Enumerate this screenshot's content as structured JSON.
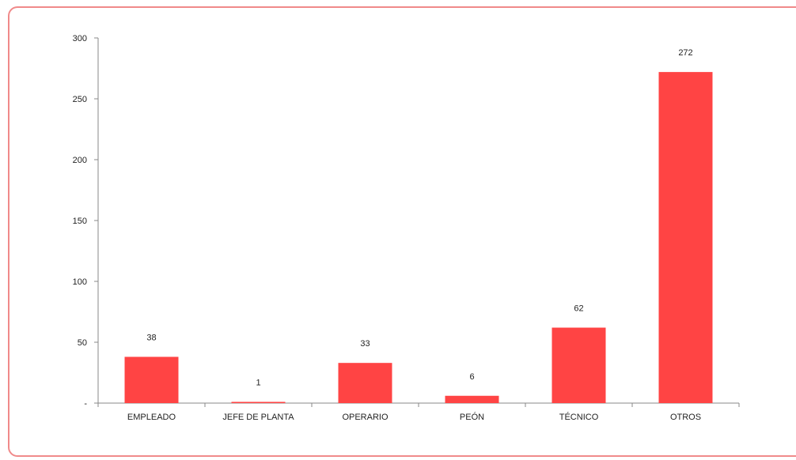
{
  "chart_data": {
    "type": "bar",
    "categories": [
      "EMPLEADO",
      "JEFE DE PLANTA",
      "OPERARIO",
      "PEÓN",
      "TÉCNICO",
      "OTROS"
    ],
    "values": [
      38,
      1,
      33,
      6,
      62,
      272
    ],
    "data_labels": [
      "38",
      "1",
      "33",
      "6",
      "62",
      "272"
    ],
    "ylim": [
      0,
      300
    ],
    "yticks": [
      0,
      50,
      100,
      150,
      200,
      250,
      300
    ],
    "ytick_labels": [
      "-",
      "50",
      "100",
      "150",
      "200",
      "250",
      "300"
    ],
    "title": "",
    "xlabel": "",
    "ylabel": "",
    "grid": false,
    "legend": "none",
    "bar_color": "#ff4444",
    "frame_color": "#f08a8a"
  }
}
